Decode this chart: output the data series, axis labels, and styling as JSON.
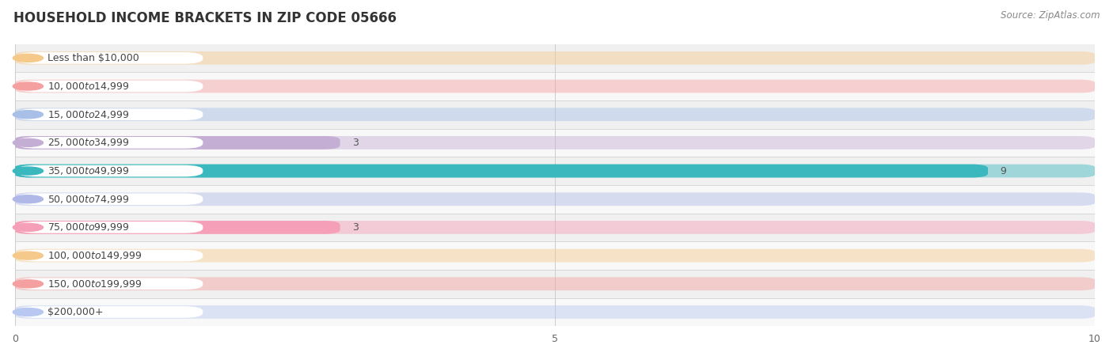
{
  "title": "HOUSEHOLD INCOME BRACKETS IN ZIP CODE 05666",
  "source": "Source: ZipAtlas.com",
  "categories": [
    "Less than $10,000",
    "$10,000 to $14,999",
    "$15,000 to $24,999",
    "$25,000 to $34,999",
    "$35,000 to $49,999",
    "$50,000 to $74,999",
    "$75,000 to $99,999",
    "$100,000 to $149,999",
    "$150,000 to $199,999",
    "$200,000+"
  ],
  "values": [
    0,
    0,
    0,
    3,
    9,
    0,
    3,
    0,
    0,
    0
  ],
  "bar_colors": [
    "#f5c98a",
    "#f5a0a0",
    "#a8c0e8",
    "#c4aed4",
    "#3ab8be",
    "#b0b8e8",
    "#f5a0b8",
    "#f5c98a",
    "#f5a0a0",
    "#b8c8f0"
  ],
  "xlim": [
    0,
    10
  ],
  "xticks": [
    0,
    5,
    10
  ],
  "bg_color": "#ffffff",
  "row_bg_color": "#f0f0f0",
  "row_alt_color": "#f8f8f8",
  "title_fontsize": 12,
  "source_fontsize": 8.5,
  "label_fontsize": 9,
  "value_fontsize": 9,
  "tick_fontsize": 9
}
